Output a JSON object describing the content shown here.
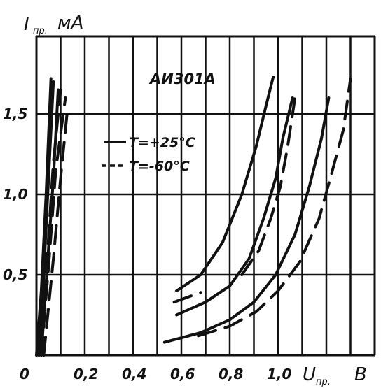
{
  "chart_data": {
    "type": "line",
    "title": "АИ301А",
    "ylabel": {
      "main": "I",
      "sub": "пр.",
      "unit": "мА"
    },
    "xlabel": {
      "main": "U",
      "sub": "пр.",
      "unit": "В"
    },
    "origin_label": "0",
    "xlim": [
      0,
      1.25
    ],
    "ylim": [
      0,
      1.85
    ],
    "x_ticks": [
      {
        "value": 0.2,
        "label": "0,2"
      },
      {
        "value": 0.4,
        "label": "0,4"
      },
      {
        "value": 0.6,
        "label": "0,6"
      },
      {
        "value": 0.8,
        "label": "0,8"
      },
      {
        "value": 1.0,
        "label": "1,0"
      }
    ],
    "y_ticks": [
      {
        "value": 0.5,
        "label": "0,5"
      },
      {
        "value": 1.0,
        "label": "1,0"
      },
      {
        "value": 1.5,
        "label": "1,5"
      }
    ],
    "grid": true,
    "legend": {
      "placement": "top-left-inside",
      "entries": [
        {
          "label": "T=+25°C",
          "style": "solid"
        },
        {
          "label": "T=-60°C",
          "style": "dashed"
        }
      ]
    },
    "series": [
      {
        "style": "solid",
        "points": [
          [
            0.0,
            0.0
          ],
          [
            0.02,
            0.4
          ],
          [
            0.04,
            1.0
          ],
          [
            0.06,
            1.72
          ]
        ]
      },
      {
        "style": "solid",
        "points": [
          [
            0.01,
            0.0
          ],
          [
            0.03,
            0.5
          ],
          [
            0.05,
            1.1
          ],
          [
            0.07,
            1.7
          ]
        ]
      },
      {
        "style": "solid",
        "points": [
          [
            0.02,
            0.0
          ],
          [
            0.04,
            0.45
          ],
          [
            0.07,
            1.1
          ],
          [
            0.09,
            1.65
          ]
        ]
      },
      {
        "style": "dashed",
        "points": [
          [
            0.01,
            0.0
          ],
          [
            0.04,
            0.5
          ],
          [
            0.07,
            1.2
          ],
          [
            0.1,
            1.65
          ]
        ]
      },
      {
        "style": "dashed",
        "points": [
          [
            0.02,
            0.0
          ],
          [
            0.05,
            0.55
          ],
          [
            0.08,
            1.15
          ],
          [
            0.12,
            1.6
          ]
        ]
      },
      {
        "style": "dashed",
        "points": [
          [
            0.03,
            0.0
          ],
          [
            0.07,
            0.6
          ],
          [
            0.1,
            1.1
          ],
          [
            0.13,
            1.55
          ]
        ]
      },
      {
        "style": "solid",
        "points": [
          [
            0.58,
            0.4
          ],
          [
            0.68,
            0.5
          ],
          [
            0.77,
            0.7
          ],
          [
            0.85,
            1.0
          ],
          [
            0.91,
            1.3
          ],
          [
            0.95,
            1.55
          ],
          [
            0.98,
            1.73
          ]
        ]
      },
      {
        "style": "solid",
        "points": [
          [
            0.58,
            0.25
          ],
          [
            0.7,
            0.33
          ],
          [
            0.8,
            0.43
          ],
          [
            0.88,
            0.6
          ],
          [
            0.94,
            0.85
          ],
          [
            0.99,
            1.1
          ],
          [
            1.02,
            1.35
          ],
          [
            1.06,
            1.6
          ]
        ]
      },
      {
        "style": "solid",
        "points": [
          [
            0.53,
            0.08
          ],
          [
            0.68,
            0.14
          ],
          [
            0.8,
            0.22
          ],
          [
            0.9,
            0.33
          ],
          [
            0.99,
            0.5
          ],
          [
            1.07,
            0.75
          ],
          [
            1.13,
            1.05
          ],
          [
            1.18,
            1.35
          ],
          [
            1.21,
            1.6
          ]
        ]
      },
      {
        "style": "dashed",
        "points": [
          [
            0.57,
            0.33
          ],
          [
            0.68,
            0.39
          ]
        ]
      },
      {
        "style": "dashed",
        "points": [
          [
            0.85,
            0.5
          ],
          [
            0.92,
            0.65
          ],
          [
            0.97,
            0.85
          ],
          [
            1.01,
            1.05
          ],
          [
            1.04,
            1.3
          ],
          [
            1.07,
            1.6
          ]
        ]
      },
      {
        "style": "dashed",
        "points": [
          [
            0.67,
            0.12
          ],
          [
            0.8,
            0.18
          ],
          [
            0.91,
            0.27
          ],
          [
            1.0,
            0.4
          ],
          [
            1.09,
            0.58
          ],
          [
            1.17,
            0.85
          ],
          [
            1.22,
            1.12
          ],
          [
            1.27,
            1.4
          ],
          [
            1.3,
            1.72
          ]
        ]
      }
    ]
  }
}
